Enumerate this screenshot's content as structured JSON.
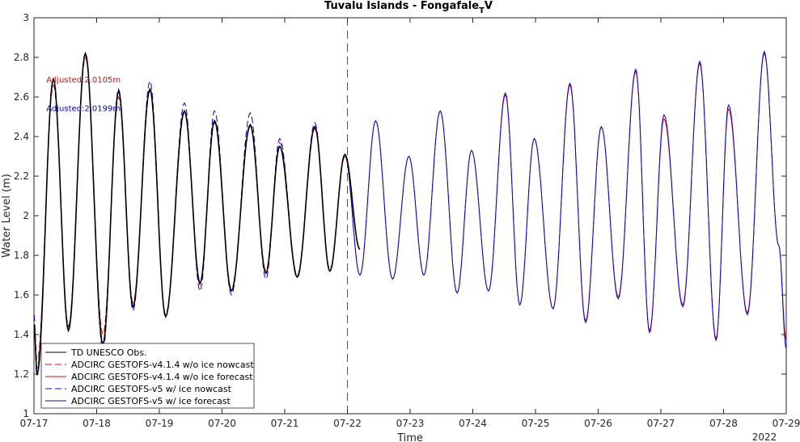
{
  "chart_data": {
    "type": "line",
    "title": "Tuvalu Islands - Fongafale",
    "title_subscript": "T",
    "title_suffix": "V",
    "xlabel": "Time",
    "ylabel": "Water Level (m)",
    "year_label": "2022",
    "xlim": [
      "07-17",
      "07-29"
    ],
    "ylim": [
      1,
      3
    ],
    "yticks": [
      1,
      1.2,
      1.4,
      1.6,
      1.8,
      2,
      2.2,
      2.4,
      2.6,
      2.8,
      3
    ],
    "ytick_labels": [
      "1",
      "1.2",
      "1.4",
      "1.6",
      "1.8",
      "2",
      "2.2",
      "2.4",
      "2.6",
      "2.8",
      "3"
    ],
    "xtick_labels": [
      "07-17",
      "07-18",
      "07-19",
      "07-20",
      "07-21",
      "07-22",
      "07-23",
      "07-24",
      "07-25",
      "07-26",
      "07-27",
      "07-28",
      "07-29"
    ],
    "grid": false,
    "legend_position": "bottom-left",
    "nowcast_forecast_split": "07-22",
    "series": [
      {
        "name": "TD UNESCO Obs.",
        "color": "#000000",
        "style": "solid",
        "x_days": [
          0.0,
          0.05,
          0.31,
          0.55,
          0.82,
          1.1,
          1.35,
          1.58,
          1.85,
          2.1,
          2.4,
          2.65,
          2.88,
          3.15,
          3.45,
          3.7,
          3.92,
          4.2,
          4.48,
          4.72,
          4.96,
          5.2
        ],
        "values": [
          1.45,
          1.2,
          2.69,
          1.42,
          2.82,
          1.35,
          2.63,
          1.54,
          2.64,
          1.49,
          2.53,
          1.66,
          2.48,
          1.62,
          2.46,
          1.71,
          2.35,
          1.69,
          2.45,
          1.72,
          2.31,
          1.83
        ]
      },
      {
        "name": "ADCIRC GESTOFS-v4.1.4 w/o ice nowcast",
        "color": "#ff0000",
        "style": "dashed",
        "x_days": [
          0.0,
          0.05,
          0.31,
          0.55,
          0.82,
          1.1,
          1.35,
          1.58,
          1.85,
          2.1,
          2.4,
          2.65,
          2.88,
          3.15,
          3.45,
          3.7,
          3.92,
          4.2,
          4.48,
          4.72,
          4.96
        ],
        "values": [
          1.45,
          1.27,
          2.66,
          1.44,
          2.8,
          1.4,
          2.6,
          1.56,
          2.63,
          1.5,
          2.52,
          1.65,
          2.47,
          1.63,
          2.45,
          1.72,
          2.37,
          1.7,
          2.44,
          1.73,
          2.3
        ]
      },
      {
        "name": "ADCIRC GESTOFS-v4.1.4 w/o ice forecast",
        "color": "#ff0000",
        "style": "solid",
        "x_days": [
          4.96,
          5.2,
          5.45,
          5.72,
          5.98,
          6.22,
          6.48,
          6.75,
          6.98,
          7.25,
          7.52,
          7.75,
          7.98,
          8.28,
          8.55,
          8.8,
          9.05,
          9.32,
          9.6,
          9.82,
          10.05,
          10.35,
          10.62,
          10.88,
          11.08,
          11.38,
          11.65,
          11.88,
          12.0
        ],
        "values": [
          2.3,
          1.7,
          2.48,
          1.68,
          2.3,
          1.7,
          2.53,
          1.61,
          2.33,
          1.62,
          2.61,
          1.55,
          2.39,
          1.53,
          2.66,
          1.47,
          2.45,
          1.59,
          2.73,
          1.42,
          2.49,
          1.55,
          2.77,
          1.38,
          2.54,
          1.51,
          2.82,
          1.85,
          1.37
        ]
      },
      {
        "name": "ADCIRC GESTOFS-v5 w/ ice nowcast",
        "color": "#0000ff",
        "style": "dashed",
        "x_days": [
          0.0,
          0.05,
          0.31,
          0.55,
          0.82,
          1.1,
          1.35,
          1.58,
          1.85,
          2.1,
          2.4,
          2.65,
          2.88,
          3.15,
          3.45,
          3.7,
          3.92,
          4.2,
          4.48,
          4.72,
          4.96
        ],
        "values": [
          1.5,
          1.23,
          2.69,
          1.44,
          2.82,
          1.32,
          2.64,
          1.52,
          2.68,
          1.49,
          2.57,
          1.62,
          2.53,
          1.6,
          2.52,
          1.68,
          2.39,
          1.69,
          2.47,
          1.72,
          2.31
        ]
      },
      {
        "name": "ADCIRC GESTOFS-v5 w/ ice forecast",
        "color": "#0000ff",
        "style": "solid",
        "x_days": [
          4.96,
          5.2,
          5.45,
          5.72,
          5.98,
          6.22,
          6.48,
          6.75,
          6.98,
          7.25,
          7.52,
          7.75,
          7.98,
          8.28,
          8.55,
          8.8,
          9.05,
          9.32,
          9.6,
          9.82,
          10.05,
          10.35,
          10.62,
          10.88,
          11.08,
          11.38,
          11.65,
          11.88,
          12.0
        ],
        "values": [
          2.31,
          1.7,
          2.48,
          1.68,
          2.3,
          1.7,
          2.53,
          1.61,
          2.33,
          1.62,
          2.62,
          1.55,
          2.39,
          1.53,
          2.67,
          1.46,
          2.45,
          1.58,
          2.74,
          1.41,
          2.51,
          1.54,
          2.78,
          1.37,
          2.56,
          1.5,
          2.83,
          1.85,
          1.33
        ]
      }
    ],
    "annotations": [
      {
        "text": "Adjusted:2.0105m",
        "color": "#ff0000",
        "x_days": 0.3,
        "y": 2.69
      },
      {
        "text": "Adjusted:2.0199m",
        "color": "#0000ff",
        "x_days": 0.3,
        "y": 2.545
      }
    ]
  }
}
